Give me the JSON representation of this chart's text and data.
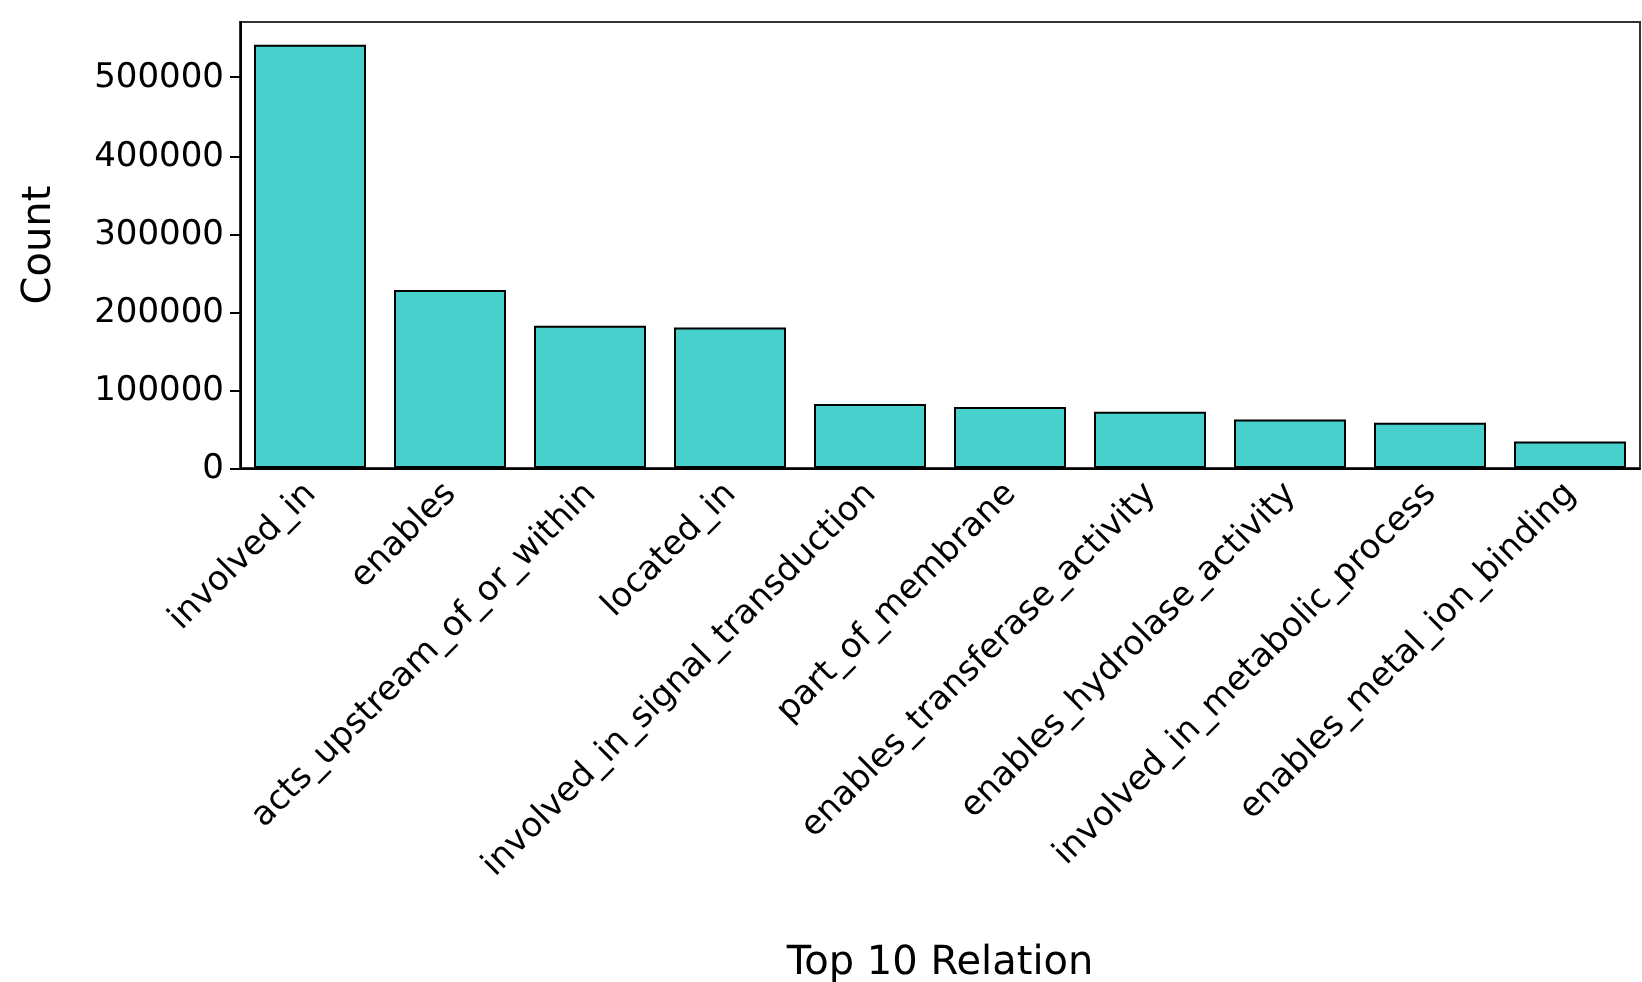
{
  "chart_data": {
    "type": "bar",
    "xlabel": "Top 10 Relation",
    "ylabel": "Count",
    "categories": [
      "involved_in",
      "enables",
      "acts_upstream_of_or_within",
      "located_in",
      "involved_in_signal_transduction",
      "part_of_membrane",
      "enables_transferase_activity",
      "enables_hydrolase_activity",
      "involved_in_metabolic_process",
      "enables_metal_ion_binding"
    ],
    "values": [
      542000,
      228000,
      182000,
      180000,
      82000,
      78000,
      72000,
      62000,
      58000,
      34000
    ],
    "color": "#48d1cc",
    "ylim": [
      0,
      571000
    ],
    "yticks": [
      0,
      100000,
      200000,
      300000,
      400000,
      500000
    ],
    "grid": false
  }
}
